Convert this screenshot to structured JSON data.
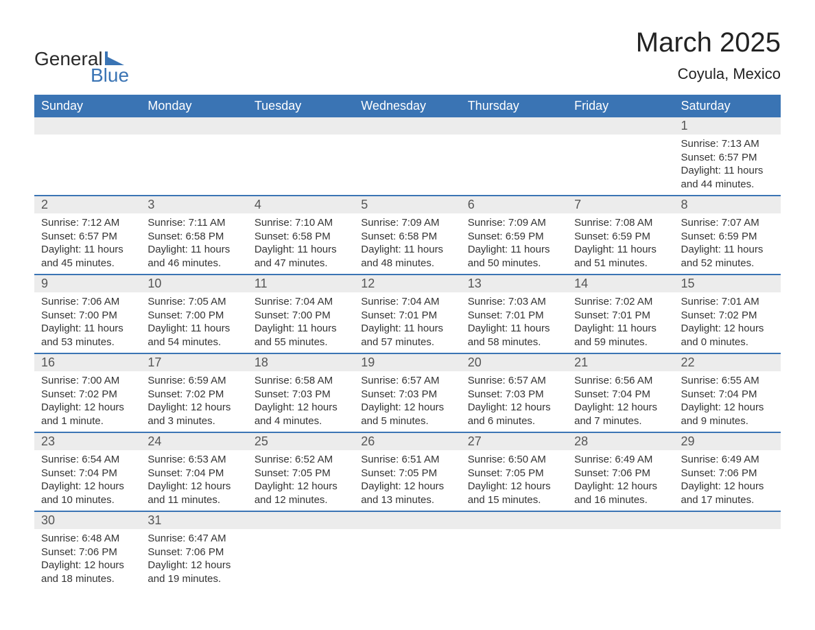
{
  "logo": {
    "text1": "General",
    "text2": "Blue",
    "mark_color": "#3a74b4"
  },
  "title": "March 2025",
  "subtitle": "Coyula, Mexico",
  "colors": {
    "header_bg": "#3a74b4",
    "header_text": "#ffffff",
    "daynum_bg": "#ececec",
    "daynum_text": "#555555",
    "body_text": "#333333",
    "row_divider": "#3a74b4",
    "page_bg": "#ffffff"
  },
  "typography": {
    "title_fontsize": 40,
    "subtitle_fontsize": 22,
    "header_fontsize": 18,
    "daynum_fontsize": 18,
    "body_fontsize": 15,
    "font_family": "Arial"
  },
  "layout": {
    "columns": 7,
    "rows": 6,
    "first_day_column": 6
  },
  "day_headers": [
    "Sunday",
    "Monday",
    "Tuesday",
    "Wednesday",
    "Thursday",
    "Friday",
    "Saturday"
  ],
  "labels": {
    "sunrise": "Sunrise: ",
    "sunset": "Sunset: ",
    "daylight": "Daylight: "
  },
  "days": [
    {
      "n": 1,
      "sunrise": "7:13 AM",
      "sunset": "6:57 PM",
      "daylight": "11 hours and 44 minutes."
    },
    {
      "n": 2,
      "sunrise": "7:12 AM",
      "sunset": "6:57 PM",
      "daylight": "11 hours and 45 minutes."
    },
    {
      "n": 3,
      "sunrise": "7:11 AM",
      "sunset": "6:58 PM",
      "daylight": "11 hours and 46 minutes."
    },
    {
      "n": 4,
      "sunrise": "7:10 AM",
      "sunset": "6:58 PM",
      "daylight": "11 hours and 47 minutes."
    },
    {
      "n": 5,
      "sunrise": "7:09 AM",
      "sunset": "6:58 PM",
      "daylight": "11 hours and 48 minutes."
    },
    {
      "n": 6,
      "sunrise": "7:09 AM",
      "sunset": "6:59 PM",
      "daylight": "11 hours and 50 minutes."
    },
    {
      "n": 7,
      "sunrise": "7:08 AM",
      "sunset": "6:59 PM",
      "daylight": "11 hours and 51 minutes."
    },
    {
      "n": 8,
      "sunrise": "7:07 AM",
      "sunset": "6:59 PM",
      "daylight": "11 hours and 52 minutes."
    },
    {
      "n": 9,
      "sunrise": "7:06 AM",
      "sunset": "7:00 PM",
      "daylight": "11 hours and 53 minutes."
    },
    {
      "n": 10,
      "sunrise": "7:05 AM",
      "sunset": "7:00 PM",
      "daylight": "11 hours and 54 minutes."
    },
    {
      "n": 11,
      "sunrise": "7:04 AM",
      "sunset": "7:00 PM",
      "daylight": "11 hours and 55 minutes."
    },
    {
      "n": 12,
      "sunrise": "7:04 AM",
      "sunset": "7:01 PM",
      "daylight": "11 hours and 57 minutes."
    },
    {
      "n": 13,
      "sunrise": "7:03 AM",
      "sunset": "7:01 PM",
      "daylight": "11 hours and 58 minutes."
    },
    {
      "n": 14,
      "sunrise": "7:02 AM",
      "sunset": "7:01 PM",
      "daylight": "11 hours and 59 minutes."
    },
    {
      "n": 15,
      "sunrise": "7:01 AM",
      "sunset": "7:02 PM",
      "daylight": "12 hours and 0 minutes."
    },
    {
      "n": 16,
      "sunrise": "7:00 AM",
      "sunset": "7:02 PM",
      "daylight": "12 hours and 1 minute."
    },
    {
      "n": 17,
      "sunrise": "6:59 AM",
      "sunset": "7:02 PM",
      "daylight": "12 hours and 3 minutes."
    },
    {
      "n": 18,
      "sunrise": "6:58 AM",
      "sunset": "7:03 PM",
      "daylight": "12 hours and 4 minutes."
    },
    {
      "n": 19,
      "sunrise": "6:57 AM",
      "sunset": "7:03 PM",
      "daylight": "12 hours and 5 minutes."
    },
    {
      "n": 20,
      "sunrise": "6:57 AM",
      "sunset": "7:03 PM",
      "daylight": "12 hours and 6 minutes."
    },
    {
      "n": 21,
      "sunrise": "6:56 AM",
      "sunset": "7:04 PM",
      "daylight": "12 hours and 7 minutes."
    },
    {
      "n": 22,
      "sunrise": "6:55 AM",
      "sunset": "7:04 PM",
      "daylight": "12 hours and 9 minutes."
    },
    {
      "n": 23,
      "sunrise": "6:54 AM",
      "sunset": "7:04 PM",
      "daylight": "12 hours and 10 minutes."
    },
    {
      "n": 24,
      "sunrise": "6:53 AM",
      "sunset": "7:04 PM",
      "daylight": "12 hours and 11 minutes."
    },
    {
      "n": 25,
      "sunrise": "6:52 AM",
      "sunset": "7:05 PM",
      "daylight": "12 hours and 12 minutes."
    },
    {
      "n": 26,
      "sunrise": "6:51 AM",
      "sunset": "7:05 PM",
      "daylight": "12 hours and 13 minutes."
    },
    {
      "n": 27,
      "sunrise": "6:50 AM",
      "sunset": "7:05 PM",
      "daylight": "12 hours and 15 minutes."
    },
    {
      "n": 28,
      "sunrise": "6:49 AM",
      "sunset": "7:06 PM",
      "daylight": "12 hours and 16 minutes."
    },
    {
      "n": 29,
      "sunrise": "6:49 AM",
      "sunset": "7:06 PM",
      "daylight": "12 hours and 17 minutes."
    },
    {
      "n": 30,
      "sunrise": "6:48 AM",
      "sunset": "7:06 PM",
      "daylight": "12 hours and 18 minutes."
    },
    {
      "n": 31,
      "sunrise": "6:47 AM",
      "sunset": "7:06 PM",
      "daylight": "12 hours and 19 minutes."
    }
  ]
}
